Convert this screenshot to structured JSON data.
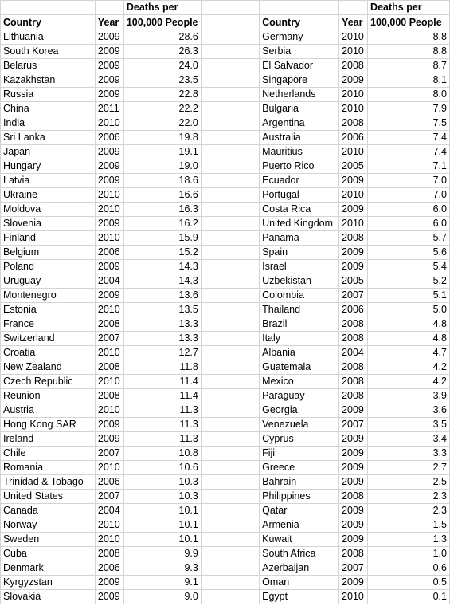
{
  "headers": {
    "country": "Country",
    "year": "Year",
    "deaths_line1": "Deaths per",
    "deaths_line2": "100,000 People"
  },
  "left_rows": [
    [
      "Lithuania",
      "2009",
      "28.6"
    ],
    [
      "South Korea",
      "2009",
      "26.3"
    ],
    [
      "Belarus",
      "2009",
      "24.0"
    ],
    [
      "Kazakhstan",
      "2009",
      "23.5"
    ],
    [
      "Russia",
      "2009",
      "22.8"
    ],
    [
      "China",
      "2011",
      "22.2"
    ],
    [
      "India",
      "2010",
      "22.0"
    ],
    [
      "Sri Lanka",
      "2006",
      "19.8"
    ],
    [
      "Japan",
      "2009",
      "19.1"
    ],
    [
      "Hungary",
      "2009",
      "19.0"
    ],
    [
      "Latvia",
      "2009",
      "18.6"
    ],
    [
      "Ukraine",
      "2010",
      "16.6"
    ],
    [
      "Moldova",
      "2010",
      "16.3"
    ],
    [
      "Slovenia",
      "2009",
      "16.2"
    ],
    [
      "Finland",
      "2010",
      "15.9"
    ],
    [
      "Belgium",
      "2006",
      "15.2"
    ],
    [
      "Poland",
      "2009",
      "14.3"
    ],
    [
      "Uruguay",
      "2004",
      "14.3"
    ],
    [
      "Montenegro",
      "2009",
      "13.6"
    ],
    [
      "Estonia",
      "2010",
      "13.5"
    ],
    [
      "France",
      "2008",
      "13.3"
    ],
    [
      "Switzerland",
      "2007",
      "13.3"
    ],
    [
      "Croatia",
      "2010",
      "12.7"
    ],
    [
      "New Zealand",
      "2008",
      "11.8"
    ],
    [
      "Czech Republic",
      "2010",
      "11.4"
    ],
    [
      "Reunion",
      "2008",
      "11.4"
    ],
    [
      "Austria",
      "2010",
      "11.3"
    ],
    [
      "Hong Kong SAR",
      "2009",
      "11.3"
    ],
    [
      "Ireland",
      "2009",
      "11.3"
    ],
    [
      "Chile",
      "2007",
      "10.8"
    ],
    [
      "Romania",
      "2010",
      "10.6"
    ],
    [
      "Trinidad & Tobago",
      "2006",
      "10.3"
    ],
    [
      "United States",
      "2007",
      "10.3"
    ],
    [
      "Canada",
      "2004",
      "10.1"
    ],
    [
      "Norway",
      "2010",
      "10.1"
    ],
    [
      "Sweden",
      "2010",
      "10.1"
    ],
    [
      "Cuba",
      "2008",
      "9.9"
    ],
    [
      "Denmark",
      "2006",
      "9.3"
    ],
    [
      "Kyrgyzstan",
      "2009",
      "9.1"
    ],
    [
      "Slovakia",
      "2009",
      "9.0"
    ]
  ],
  "right_rows": [
    [
      "Germany",
      "2010",
      "8.8"
    ],
    [
      "Serbia",
      "2010",
      "8.8"
    ],
    [
      "El Salvador",
      "2008",
      "8.7"
    ],
    [
      "Singapore",
      "2009",
      "8.1"
    ],
    [
      "Netherlands",
      "2010",
      "8.0"
    ],
    [
      "Bulgaria",
      "2010",
      "7.9"
    ],
    [
      "Argentina",
      "2008",
      "7.5"
    ],
    [
      "Australia",
      "2006",
      "7.4"
    ],
    [
      "Mauritius",
      "2010",
      "7.4"
    ],
    [
      "Puerto Rico",
      "2005",
      "7.1"
    ],
    [
      "Ecuador",
      "2009",
      "7.0"
    ],
    [
      "Portugal",
      "2010",
      "7.0"
    ],
    [
      "Costa Rica",
      "2009",
      "6.0"
    ],
    [
      "United Kingdom",
      "2010",
      "6.0"
    ],
    [
      "Panama",
      "2008",
      "5.7"
    ],
    [
      "Spain",
      "2009",
      "5.6"
    ],
    [
      "Israel",
      "2009",
      "5.4"
    ],
    [
      "Uzbekistan",
      "2005",
      "5.2"
    ],
    [
      "Colombia",
      "2007",
      "5.1"
    ],
    [
      "Thailand",
      "2006",
      "5.0"
    ],
    [
      "Brazil",
      "2008",
      "4.8"
    ],
    [
      "Italy",
      "2008",
      "4.8"
    ],
    [
      "Albania",
      "2004",
      "4.7"
    ],
    [
      "Guatemala",
      "2008",
      "4.2"
    ],
    [
      "Mexico",
      "2008",
      "4.2"
    ],
    [
      "Paraguay",
      "2008",
      "3.9"
    ],
    [
      "Georgia",
      "2009",
      "3.6"
    ],
    [
      "Venezuela",
      "2007",
      "3.5"
    ],
    [
      "Cyprus",
      "2009",
      "3.4"
    ],
    [
      "Fiji",
      "2009",
      "3.3"
    ],
    [
      "Greece",
      "2009",
      "2.7"
    ],
    [
      "Bahrain",
      "2009",
      "2.5"
    ],
    [
      "Philippines",
      "2008",
      "2.3"
    ],
    [
      "Qatar",
      "2009",
      "2.3"
    ],
    [
      "Armenia",
      "2009",
      "1.5"
    ],
    [
      "Kuwait",
      "2009",
      "1.3"
    ],
    [
      "South Africa",
      "2008",
      "1.0"
    ],
    [
      "Azerbaijan",
      "2007",
      "0.6"
    ],
    [
      "Oman",
      "2009",
      "0.5"
    ],
    [
      "Egypt",
      "2010",
      "0.1"
    ]
  ]
}
